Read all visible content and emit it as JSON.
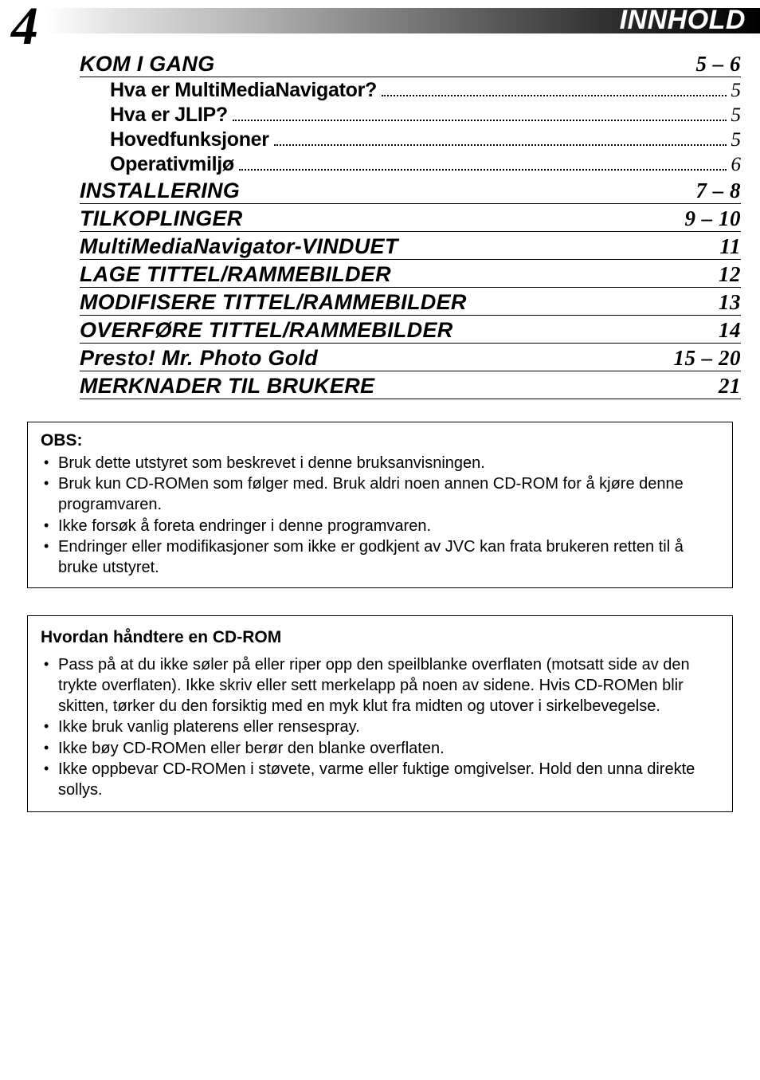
{
  "header": {
    "page_number": "4",
    "label": "INNHOLD",
    "bar_gradient_start": "#ffffff",
    "bar_gradient_end": "#000000",
    "label_color": "#ffffff"
  },
  "toc": [
    {
      "title": "KOM I GANG",
      "page": "5 – 6",
      "sub": [
        {
          "title": "Hva er MultiMediaNavigator?",
          "page": "5"
        },
        {
          "title": "Hva er JLIP?",
          "page": "5"
        },
        {
          "title": "Hovedfunksjoner",
          "page": "5"
        },
        {
          "title": "Operativmiljø",
          "page": "6"
        }
      ]
    },
    {
      "title": "INSTALLERING",
      "page": "7 – 8"
    },
    {
      "title": "TILKOPLINGER",
      "page": "9 – 10"
    },
    {
      "title": "MultiMediaNavigator-VINDUET",
      "page": "11"
    },
    {
      "title": "LAGE TITTEL/RAMMEBILDER",
      "page": "12"
    },
    {
      "title": "MODIFISERE TITTEL/RAMMEBILDER",
      "page": "13"
    },
    {
      "title": "OVERFØRE TITTEL/RAMMEBILDER",
      "page": "14"
    },
    {
      "title": "Presto! Mr. Photo Gold",
      "page": "15 – 20"
    },
    {
      "title": "MERKNADER TIL BRUKERE",
      "page": "21"
    }
  ],
  "obs": {
    "heading": "OBS:",
    "items": [
      "Bruk dette utstyret som beskrevet i denne bruksanvisningen.",
      "Bruk kun CD-ROMen som følger med. Bruk aldri noen annen CD-ROM for å kjøre denne programvaren.",
      "Ikke forsøk å foreta endringer i denne programvaren.",
      "Endringer eller modifikasjoner som ikke er godkjent av JVC kan frata brukeren retten til å bruke utstyret."
    ]
  },
  "cdrom": {
    "heading": "Hvordan håndtere en CD-ROM",
    "items": [
      "Pass på at du ikke søler på eller riper opp den speilblanke overflaten (motsatt side av den trykte overflaten). Ikke skriv eller sett merkelapp på noen av sidene. Hvis CD-ROMen blir skitten, tørker du den forsiktig med en myk klut fra midten og utover i sirkelbevegelse.",
      "Ikke bruk vanlig platerens eller rensespray.",
      "Ikke bøy CD-ROMen eller berør den blanke overflaten.",
      "Ikke oppbevar CD-ROMen i støvete, varme eller fuktige omgivelser. Hold den unna direkte sollys."
    ]
  },
  "style": {
    "body_font": "Helvetica",
    "page_number_font": "Times",
    "toc_title_fontsize": 27,
    "toc_page_fontsize": 27,
    "sub_title_fontsize": 25,
    "box_fontsize": 20,
    "text_color": "#000000",
    "background_color": "#ffffff",
    "rule_color": "#000000"
  }
}
